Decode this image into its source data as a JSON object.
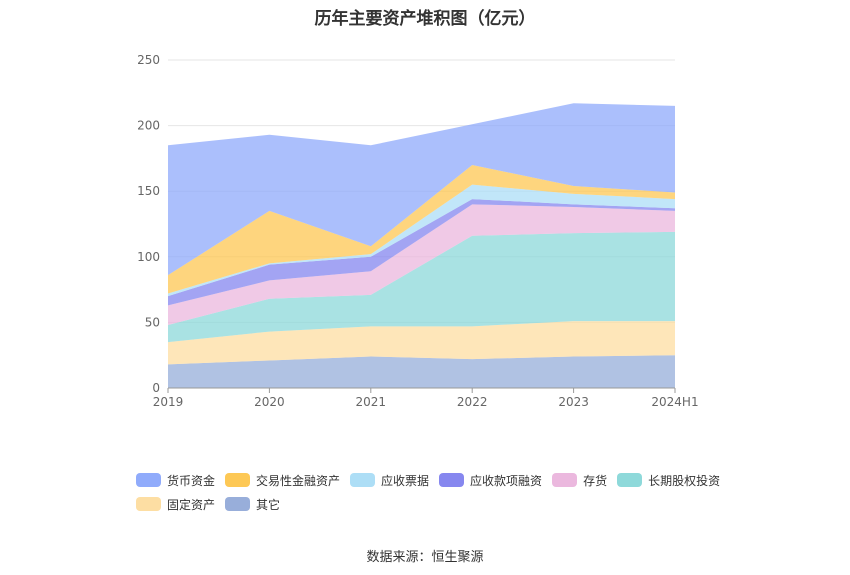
{
  "chart_data": {
    "type": "area",
    "stacked": true,
    "title": "历年主要资产堆积图（亿元）",
    "categories": [
      "2019",
      "2020",
      "2021",
      "2022",
      "2023",
      "2024H1"
    ],
    "ylim": [
      0,
      250
    ],
    "yticks": [
      "0",
      "50",
      "100",
      "150",
      "200",
      "250"
    ],
    "grid": true,
    "legend_position": "bottom",
    "series": [
      {
        "name": "其它",
        "color": "#92aad8",
        "values": [
          18,
          21,
          24,
          22,
          24,
          25
        ]
      },
      {
        "name": "固定资产",
        "color": "#fddc9e",
        "values": [
          17,
          22,
          23,
          25,
          27,
          26
        ]
      },
      {
        "name": "长期股权投资",
        "color": "#88d7d8",
        "values": [
          13,
          25,
          24,
          69,
          67,
          68
        ]
      },
      {
        "name": "存货",
        "color": "#eab4dc",
        "values": [
          15,
          14,
          18,
          24,
          20,
          16
        ]
      },
      {
        "name": "应收款项融资",
        "color": "#7f81ee",
        "values": [
          7,
          12,
          11,
          4,
          2,
          2
        ]
      },
      {
        "name": "应收票据",
        "color": "#a9dcf6",
        "values": [
          2,
          1,
          2,
          11,
          8,
          7
        ]
      },
      {
        "name": "交易性金融资产",
        "color": "#fdc54c",
        "values": [
          14,
          40,
          6,
          15,
          6,
          5
        ]
      },
      {
        "name": "货币资金",
        "color": "#8aa6fb",
        "values": [
          99,
          58,
          77,
          31,
          63,
          66
        ]
      }
    ]
  },
  "legend_order": [
    "货币资金",
    "交易性金融资产",
    "应收票据",
    "应收款项融资",
    "存货",
    "长期股权投资",
    "固定资产",
    "其它"
  ],
  "source_text": "数据来源：恒生聚源"
}
